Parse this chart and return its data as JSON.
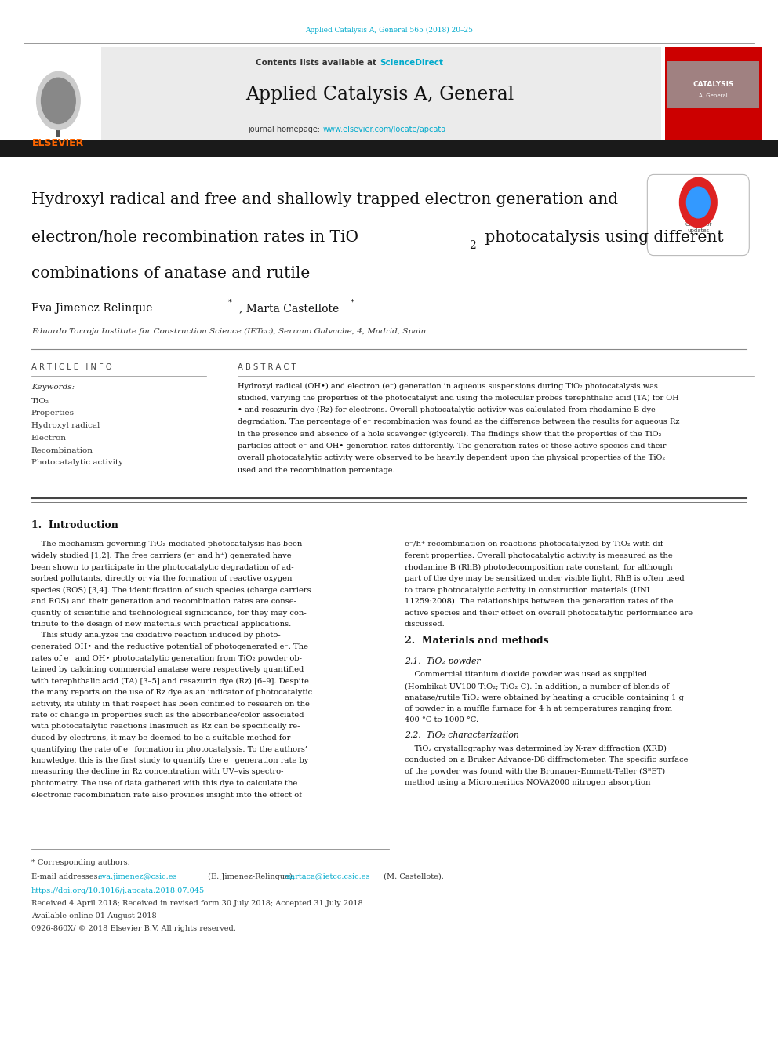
{
  "page_width": 9.92,
  "page_height": 13.23,
  "background_color": "#ffffff",
  "top_citation": "Applied Catalysis A, General 565 (2018) 20–25",
  "top_citation_color": "#00aacc",
  "contents_text": "Contents lists available at ",
  "sciencedirect_text": "ScienceDirect",
  "sciencedirect_color": "#00aacc",
  "journal_title": "Applied Catalysis A, General",
  "homepage_label": "journal homepage: ",
  "homepage_url": "www.elsevier.com/locate/apcata",
  "homepage_color": "#00aacc",
  "black_bar_color": "#1a1a1a",
  "article_info_header": "A R T I C L E   I N F O",
  "abstract_header": "A B S T R A C T",
  "keywords_label": "Keywords:",
  "keywords": [
    "TiO₂",
    "Properties",
    "Hydroxyl radical",
    "Electron",
    "Recombination",
    "Photocatalytic activity"
  ],
  "affiliation": "Eduardo Torroja Institute for Construction Science (IETcc), Serrano Galvache, 4, Madrid, Spain",
  "abstract_lines": [
    "Hydroxyl radical (OH•) and electron (e⁻) generation in aqueous suspensions during TiO₂ photocatalysis was",
    "studied, varying the properties of the photocatalyst and using the molecular probes terephthalic acid (TA) for OH",
    "• and resazurin dye (Rz) for electrons. Overall photocatalytic activity was calculated from rhodamine B dye",
    "degradation. The percentage of e⁻ recombination was found as the difference between the results for aqueous Rz",
    "in the presence and absence of a hole scavenger (glycerol). The findings show that the properties of the TiO₂",
    "particles affect e⁻ and OH• generation rates differently. The generation rates of these active species and their",
    "overall photocatalytic activity were observed to be heavily dependent upon the physical properties of the TiO₂",
    "used and the recombination percentage."
  ],
  "section1_title": "1.  Introduction",
  "intro_col1_lines": [
    "    The mechanism governing TiO₂-mediated photocatalysis has been",
    "widely studied [1,2]. The free carriers (e⁻ and h⁺) generated have",
    "been shown to participate in the photocatalytic degradation of ad-",
    "sorbed pollutants, directly or via the formation of reactive oxygen",
    "species (ROS) [3,4]. The identification of such species (charge carriers",
    "and ROS) and their generation and recombination rates are conse-",
    "quently of scientific and technological significance, for they may con-",
    "tribute to the design of new materials with practical applications.",
    "    This study analyzes the oxidative reaction induced by photo-",
    "generated OH• and the reductive potential of photogenerated e⁻. The",
    "rates of e⁻ and OH• photocatalytic generation from TiO₂ powder ob-",
    "tained by calcining commercial anatase were respectively quantified",
    "with terephthalic acid (TA) [3–5] and resazurin dye (Rz) [6–9]. Despite",
    "the many reports on the use of Rz dye as an indicator of photocatalytic",
    "activity, its utility in that respect has been confined to research on the",
    "rate of change in properties such as the absorbance/color associated",
    "with photocatalytic reactions Inasmuch as Rz can be specifically re-",
    "duced by electrons, it may be deemed to be a suitable method for",
    "quantifying the rate of e⁻ formation in photocatalysis. To the authors’",
    "knowledge, this is the first study to quantify the e⁻ generation rate by",
    "measuring the decline in Rz concentration with UV–vis spectro-",
    "photometry. The use of data gathered with this dye to calculate the",
    "electronic recombination rate also provides insight into the effect of"
  ],
  "intro_col2_lines": [
    "e⁻/h⁺ recombination on reactions photocatalyzed by TiO₂ with dif-",
    "ferent properties. Overall photocatalytic activity is measured as the",
    "rhodamine B (RhB) photodecomposition rate constant, for although",
    "part of the dye may be sensitized under visible light, RhB is often used",
    "to trace photocatalytic activity in construction materials (UNI",
    "11259:2008). The relationships between the generation rates of the",
    "active species and their effect on overall photocatalytic performance are",
    "discussed."
  ],
  "section2_title": "2.  Materials and methods",
  "section21_title": "2.1.  TiO₂ powder",
  "sect21_lines": [
    "    Commercial titanium dioxide powder was used as supplied",
    "(Hombikat UV100 TiO₂; TiO₂-C). In addition, a number of blends of",
    "anatase/rutile TiO₂ were obtained by heating a crucible containing 1 g",
    "of powder in a muffle furnace for 4 h at temperatures ranging from",
    "400 °C to 1000 °C."
  ],
  "section22_title": "2.2.  TiO₂ characterization",
  "sect22_lines": [
    "    TiO₂ crystallography was determined by X-ray diffraction (XRD)",
    "conducted on a Bruker Advance-D8 diffractometer. The specific surface",
    "of the powder was found with the Brunauer-Emmett-Teller (SᴮET)",
    "method using a Micromeritics NOVA2000 nitrogen absorption"
  ],
  "footnote_text": "* Corresponding authors.",
  "email_label": "E-mail addresses: ",
  "email1": "eva.jimenez@csic.es",
  "email1_color": "#00aacc",
  "email1_name": " (E. Jimenez-Relinque), ",
  "email2": "martaca@ietcc.csic.es",
  "email2_color": "#00aacc",
  "email2_name": " (M. Castellote).",
  "doi_text": "https://doi.org/10.1016/j.apcata.2018.07.045",
  "doi_color": "#00aacc",
  "received_text": "Received 4 April 2018; Received in revised form 30 July 2018; Accepted 31 July 2018",
  "available_text": "Available online 01 August 2018",
  "issn_text": "0926-860X/ © 2018 Elsevier B.V. All rights reserved.",
  "elsevier_orange": "#ff6600",
  "red_cover_color": "#cc0000"
}
